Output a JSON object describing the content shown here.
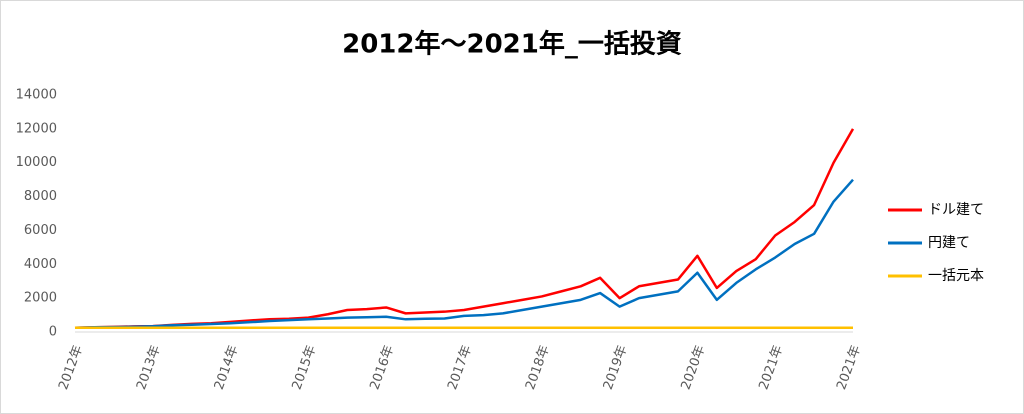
{
  "chart_data": {
    "type": "line",
    "title": "2012年～2021年_一括投資",
    "categories": [
      "2012年",
      null,
      null,
      null,
      "2013年",
      null,
      null,
      null,
      "2014年",
      null,
      null,
      null,
      "2015年",
      null,
      null,
      null,
      "2016年",
      null,
      null,
      null,
      "2017年",
      null,
      null,
      null,
      "2018年",
      null,
      null,
      null,
      "2019年",
      null,
      null,
      null,
      "2020年",
      null,
      null,
      null,
      "2021年",
      null,
      null,
      null,
      "2021年"
    ],
    "series": [
      {
        "name": "ドル建て",
        "color": "#ff0000",
        "values": [
          250,
          280,
          300,
          330,
          350,
          420,
          480,
          520,
          600,
          680,
          750,
          780,
          850,
          1050,
          1300,
          1350,
          1450,
          1100,
          1150,
          1200,
          1300,
          1500,
          1700,
          1900,
          2100,
          2400,
          2700,
          3200,
          2000,
          2700,
          2900,
          3100,
          4500,
          2600,
          3600,
          4300,
          5700,
          6500,
          7500,
          10000,
          12000
        ]
      },
      {
        "name": "円建て",
        "color": "#0070c0",
        "values": [
          250,
          280,
          290,
          310,
          340,
          400,
          430,
          470,
          520,
          580,
          650,
          700,
          750,
          800,
          850,
          870,
          900,
          750,
          780,
          800,
          950,
          1000,
          1100,
          1300,
          1500,
          1700,
          1900,
          2300,
          1500,
          2000,
          2200,
          2400,
          3500,
          1900,
          2900,
          3700,
          4400,
          5200,
          5800,
          7700,
          9000
        ]
      },
      {
        "name": "一括元本",
        "color": "#ffc000",
        "values": [
          250,
          250,
          250,
          250,
          250,
          250,
          250,
          250,
          250,
          250,
          250,
          250,
          250,
          250,
          250,
          250,
          250,
          250,
          250,
          250,
          250,
          250,
          250,
          250,
          250,
          250,
          250,
          250,
          250,
          250,
          250,
          250,
          250,
          250,
          250,
          250,
          250,
          250,
          250,
          250,
          250
        ]
      }
    ],
    "ylim": [
      0,
      14000
    ],
    "yticks": [
      0,
      2000,
      4000,
      6000,
      8000,
      10000,
      12000,
      14000
    ],
    "grid": false
  }
}
